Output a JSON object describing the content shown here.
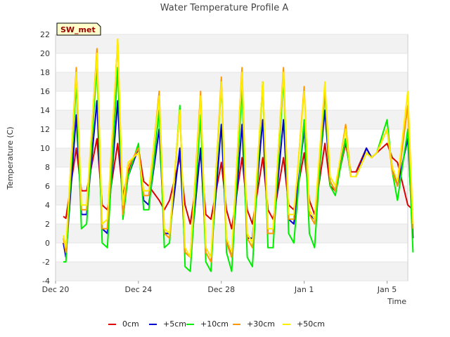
{
  "chart_data": {
    "type": "line",
    "title": "Water Temperature Profile A",
    "xlabel": "Time",
    "ylabel": "Temperature (C)",
    "badge": "SW_met",
    "ylim": [
      -4,
      22
    ],
    "yticks": [
      -4,
      -2,
      0,
      2,
      4,
      6,
      8,
      10,
      12,
      14,
      16,
      18,
      20,
      22
    ],
    "xlim": [
      "2023-12-20",
      "2024-01-06"
    ],
    "xticks": [
      {
        "date": "2023-12-20",
        "label": "Dec 20"
      },
      {
        "date": "2023-12-24",
        "label": "Dec 24"
      },
      {
        "date": "2023-12-28",
        "label": "Dec 28"
      },
      {
        "date": "2024-01-01",
        "label": "Jan 1"
      },
      {
        "date": "2024-01-05",
        "label": "Jan 5"
      }
    ],
    "grid": "horizontal alternating bands",
    "legend": "bottom",
    "series": [
      {
        "name": "0cm",
        "color": "#dd0000",
        "x": [
          "2023-12-20 09:00",
          "2023-12-20 12:00",
          "2023-12-21 00:00",
          "2023-12-21 06:00",
          "2023-12-21 12:00",
          "2023-12-22 00:00",
          "2023-12-22 06:00",
          "2023-12-22 12:00",
          "2023-12-23 00:00",
          "2023-12-23 06:00",
          "2023-12-23 12:00",
          "2023-12-24 00:00",
          "2023-12-24 06:00",
          "2023-12-24 12:00",
          "2023-12-25 00:00",
          "2023-12-25 06:00",
          "2023-12-25 12:00",
          "2023-12-26 00:00",
          "2023-12-26 06:00",
          "2023-12-26 12:00",
          "2023-12-27 00:00",
          "2023-12-27 06:00",
          "2023-12-27 12:00",
          "2023-12-28 00:00",
          "2023-12-28 06:00",
          "2023-12-28 12:00",
          "2023-12-29 00:00",
          "2023-12-29 06:00",
          "2023-12-29 12:00",
          "2023-12-30 00:00",
          "2023-12-30 06:00",
          "2023-12-30 12:00",
          "2023-12-31 00:00",
          "2023-12-31 06:00",
          "2023-12-31 12:00",
          "2024-01-01 00:00",
          "2024-01-01 06:00",
          "2024-01-01 12:00",
          "2024-01-02 00:00",
          "2024-01-02 06:00",
          "2024-01-02 12:00",
          "2024-01-03 00:00",
          "2024-01-03 06:00",
          "2024-01-03 12:00",
          "2024-01-04 00:00",
          "2024-01-04 06:00",
          "2024-01-04 12:00",
          "2024-01-05 00:00",
          "2024-01-05 06:00",
          "2024-01-05 12:00",
          "2024-01-06 00:00",
          "2024-01-06 06:00"
        ],
        "values": [
          2.8,
          2.6,
          10.0,
          5.5,
          5.5,
          11.0,
          4.0,
          3.5,
          10.5,
          5.0,
          7.5,
          10.0,
          6.5,
          6.0,
          4.5,
          3.5,
          4.5,
          9.0,
          4.0,
          2.0,
          9.5,
          3.0,
          2.5,
          8.5,
          3.5,
          1.5,
          9.0,
          3.5,
          2.0,
          9.0,
          3.5,
          2.5,
          9.0,
          4.0,
          3.5,
          9.5,
          4.5,
          3.0,
          10.5,
          6.0,
          5.5,
          10.5,
          7.5,
          7.5,
          10.0,
          9.0,
          9.5,
          10.5,
          9.0,
          8.5,
          4.0,
          3.5
        ]
      },
      {
        "name": "+5cm",
        "color": "#0000cc",
        "x": [
          "2023-12-20 09:00",
          "2023-12-20 12:00",
          "2023-12-21 00:00",
          "2023-12-21 06:00",
          "2023-12-21 12:00",
          "2023-12-22 00:00",
          "2023-12-22 06:00",
          "2023-12-22 12:00",
          "2023-12-23 00:00",
          "2023-12-23 06:00",
          "2023-12-23 12:00",
          "2023-12-24 00:00",
          "2023-12-24 06:00",
          "2023-12-24 12:00",
          "2023-12-25 00:00",
          "2023-12-25 06:00",
          "2023-12-25 12:00",
          "2023-12-26 00:00",
          "2023-12-26 06:00",
          "2023-12-26 12:00",
          "2023-12-27 00:00",
          "2023-12-27 06:00",
          "2023-12-27 12:00",
          "2023-12-28 00:00",
          "2023-12-28 06:00",
          "2023-12-28 12:00",
          "2023-12-29 00:00",
          "2023-12-29 06:00",
          "2023-12-29 12:00",
          "2023-12-30 00:00",
          "2023-12-30 06:00",
          "2023-12-30 12:00",
          "2023-12-31 00:00",
          "2023-12-31 06:00",
          "2023-12-31 12:00",
          "2024-01-01 00:00",
          "2024-01-01 06:00",
          "2024-01-01 12:00",
          "2024-01-02 00:00",
          "2024-01-02 06:00",
          "2024-01-02 12:00",
          "2024-01-03 00:00",
          "2024-01-03 06:00",
          "2024-01-03 12:00",
          "2024-01-04 00:00",
          "2024-01-04 06:00",
          "2024-01-04 12:00",
          "2024-01-05 00:00",
          "2024-01-05 06:00",
          "2024-01-05 12:00",
          "2024-01-06 00:00",
          "2024-01-06 06:00"
        ],
        "values": [
          0.0,
          -1.5,
          13.5,
          3.0,
          3.0,
          15.0,
          1.5,
          1.0,
          15.0,
          3.0,
          7.0,
          10.0,
          4.5,
          4.0,
          12.0,
          1.0,
          1.0,
          10.0,
          -1.0,
          -1.5,
          10.0,
          -0.5,
          -1.5,
          12.5,
          0.5,
          -1.5,
          12.5,
          0.5,
          0.5,
          13.0,
          1.0,
          1.0,
          13.0,
          2.5,
          2.0,
          12.0,
          3.0,
          2.5,
          14.0,
          6.5,
          5.5,
          11.0,
          7.0,
          7.0,
          10.0,
          9.0,
          9.5,
          12.0,
          8.0,
          6.0,
          11.0,
          0.5
        ]
      },
      {
        "name": "+10cm",
        "color": "#00ee00",
        "x": [
          "2023-12-20 09:00",
          "2023-12-20 12:00",
          "2023-12-21 00:00",
          "2023-12-21 06:00",
          "2023-12-21 12:00",
          "2023-12-22 00:00",
          "2023-12-22 06:00",
          "2023-12-22 12:00",
          "2023-12-23 00:00",
          "2023-12-23 06:00",
          "2023-12-23 12:00",
          "2023-12-24 00:00",
          "2023-12-24 06:00",
          "2023-12-24 12:00",
          "2023-12-25 00:00",
          "2023-12-25 06:00",
          "2023-12-25 12:00",
          "2023-12-26 00:00",
          "2023-12-26 06:00",
          "2023-12-26 12:00",
          "2023-12-27 00:00",
          "2023-12-27 06:00",
          "2023-12-27 12:00",
          "2023-12-28 00:00",
          "2023-12-28 06:00",
          "2023-12-28 12:00",
          "2023-12-29 00:00",
          "2023-12-29 06:00",
          "2023-12-29 12:00",
          "2023-12-30 00:00",
          "2023-12-30 06:00",
          "2023-12-30 12:00",
          "2023-12-31 00:00",
          "2023-12-31 06:00",
          "2023-12-31 12:00",
          "2024-01-01 00:00",
          "2024-01-01 06:00",
          "2024-01-01 12:00",
          "2024-01-02 00:00",
          "2024-01-02 06:00",
          "2024-01-02 12:00",
          "2024-01-03 00:00",
          "2024-01-03 06:00",
          "2024-01-03 12:00",
          "2024-01-04 00:00",
          "2024-01-04 06:00",
          "2024-01-04 12:00",
          "2024-01-05 00:00",
          "2024-01-05 06:00",
          "2024-01-05 12:00",
          "2024-01-06 00:00",
          "2024-01-06 06:00"
        ],
        "values": [
          -2.0,
          -2.0,
          17.0,
          1.5,
          2.0,
          19.0,
          0.0,
          -0.5,
          18.5,
          2.5,
          7.0,
          10.5,
          3.5,
          3.5,
          14.0,
          -0.5,
          0.0,
          14.5,
          -2.5,
          -3.0,
          13.5,
          -2.0,
          -3.0,
          17.0,
          -1.0,
          -3.0,
          16.5,
          -1.5,
          -2.5,
          17.0,
          -0.5,
          -0.5,
          17.5,
          1.0,
          0.0,
          13.0,
          1.0,
          -0.5,
          16.0,
          6.0,
          5.0,
          11.0,
          7.0,
          7.0,
          9.5,
          9.0,
          9.5,
          13.0,
          7.5,
          4.5,
          12.0,
          -1.0
        ]
      },
      {
        "name": "+30cm",
        "color": "#ff9900",
        "x": [
          "2023-12-20 09:00",
          "2023-12-20 12:00",
          "2023-12-21 00:00",
          "2023-12-21 06:00",
          "2023-12-21 12:00",
          "2023-12-22 00:00",
          "2023-12-22 06:00",
          "2023-12-22 12:00",
          "2023-12-23 00:00",
          "2023-12-23 06:00",
          "2023-12-23 12:00",
          "2023-12-24 00:00",
          "2023-12-24 06:00",
          "2023-12-24 12:00",
          "2023-12-25 00:00",
          "2023-12-25 06:00",
          "2023-12-25 12:00",
          "2023-12-26 00:00",
          "2023-12-26 06:00",
          "2023-12-26 12:00",
          "2023-12-27 00:00",
          "2023-12-27 06:00",
          "2023-12-27 12:00",
          "2023-12-28 00:00",
          "2023-12-28 06:00",
          "2023-12-28 12:00",
          "2023-12-29 00:00",
          "2023-12-29 06:00",
          "2023-12-29 12:00",
          "2023-12-30 00:00",
          "2023-12-30 06:00",
          "2023-12-30 12:00",
          "2023-12-31 00:00",
          "2023-12-31 06:00",
          "2023-12-31 12:00",
          "2024-01-01 00:00",
          "2024-01-01 06:00",
          "2024-01-01 12:00",
          "2024-01-02 00:00",
          "2024-01-02 06:00",
          "2024-01-02 12:00",
          "2024-01-03 00:00",
          "2024-01-03 06:00",
          "2024-01-03 12:00",
          "2024-01-04 00:00",
          "2024-01-04 06:00",
          "2024-01-04 12:00",
          "2024-01-05 00:00",
          "2024-01-05 06:00",
          "2024-01-05 12:00",
          "2024-01-06 00:00",
          "2024-01-06 06:00"
        ],
        "values": [
          0.5,
          -1.0,
          18.5,
          3.5,
          3.5,
          20.5,
          1.5,
          1.5,
          21.5,
          3.0,
          8.0,
          10.0,
          5.0,
          5.0,
          16.0,
          1.0,
          0.5,
          14.0,
          -1.0,
          -1.5,
          16.0,
          -1.0,
          -2.0,
          17.5,
          0.0,
          -1.5,
          18.5,
          0.5,
          -0.5,
          17.0,
          1.0,
          1.0,
          18.5,
          2.5,
          2.5,
          16.5,
          3.0,
          2.0,
          16.5,
          6.5,
          5.5,
          12.5,
          7.0,
          7.0,
          9.5,
          9.0,
          9.5,
          12.0,
          7.5,
          6.0,
          14.5,
          1.5
        ]
      },
      {
        "name": "+50cm",
        "color": "#ffee00",
        "x": [
          "2023-12-20 09:00",
          "2023-12-20 12:00",
          "2023-12-21 00:00",
          "2023-12-21 06:00",
          "2023-12-21 12:00",
          "2023-12-22 00:00",
          "2023-12-22 06:00",
          "2023-12-22 12:00",
          "2023-12-23 00:00",
          "2023-12-23 06:00",
          "2023-12-23 12:00",
          "2023-12-24 00:00",
          "2023-12-24 06:00",
          "2023-12-24 12:00",
          "2023-12-25 00:00",
          "2023-12-25 06:00",
          "2023-12-25 12:00",
          "2023-12-26 00:00",
          "2023-12-26 06:00",
          "2023-12-26 12:00",
          "2023-12-27 00:00",
          "2023-12-27 06:00",
          "2023-12-27 12:00",
          "2023-12-28 00:00",
          "2023-12-28 06:00",
          "2023-12-28 12:00",
          "2023-12-29 00:00",
          "2023-12-29 06:00",
          "2023-12-29 12:00",
          "2023-12-30 00:00",
          "2023-12-30 06:00",
          "2023-12-30 12:00",
          "2023-12-31 00:00",
          "2023-12-31 06:00",
          "2023-12-31 12:00",
          "2024-01-01 00:00",
          "2024-01-01 06:00",
          "2024-01-01 12:00",
          "2024-01-02 00:00",
          "2024-01-02 06:00",
          "2024-01-02 12:00",
          "2024-01-03 00:00",
          "2024-01-03 06:00",
          "2024-01-03 12:00",
          "2024-01-04 00:00",
          "2024-01-04 06:00",
          "2024-01-04 12:00",
          "2024-01-05 00:00",
          "2024-01-05 06:00",
          "2024-01-05 12:00",
          "2024-01-06 00:00",
          "2024-01-06 06:00"
        ],
        "values": [
          0.8,
          -0.5,
          18.0,
          4.0,
          4.0,
          20.0,
          2.0,
          2.5,
          21.5,
          4.0,
          8.5,
          9.5,
          5.5,
          5.5,
          15.5,
          1.5,
          1.0,
          14.0,
          -0.5,
          -1.5,
          15.5,
          -0.5,
          -1.5,
          17.0,
          0.5,
          -1.0,
          18.0,
          1.0,
          0.0,
          17.0,
          1.5,
          1.5,
          18.0,
          3.0,
          3.0,
          16.0,
          3.5,
          2.5,
          17.0,
          7.0,
          6.0,
          12.0,
          7.0,
          7.0,
          9.5,
          9.0,
          9.5,
          12.0,
          8.0,
          6.5,
          16.0,
          2.0
        ]
      }
    ]
  }
}
